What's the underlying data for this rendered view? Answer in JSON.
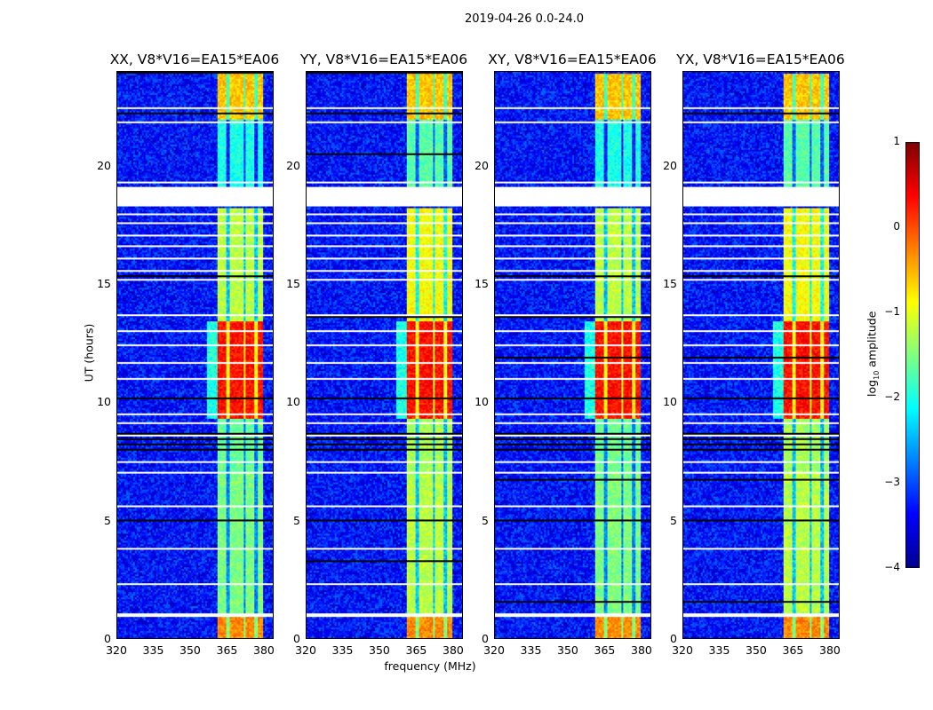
{
  "chart_data": {
    "type": "heatmap",
    "title": "2019-04-26 0.0-24.0",
    "xlabel": "frequency (MHz)",
    "ylabel": "UT (hours)",
    "xlim": [
      320,
      384
    ],
    "ylim": [
      0,
      24
    ],
    "xticks": [
      "320",
      "335",
      "350",
      "365",
      "380"
    ],
    "xtick_values": [
      320,
      335,
      350,
      365,
      380
    ],
    "yticks": [
      "0",
      "5",
      "10",
      "15",
      "20"
    ],
    "ytick_values": [
      0,
      5,
      10,
      15,
      20
    ],
    "panels": [
      {
        "title": "XX, V8*V16=EA15*EA06",
        "band_offset": 0
      },
      {
        "title": "YY, V8*V16=EA15*EA06",
        "band_offset": 0.3
      },
      {
        "title": "XY, V8*V16=EA15*EA06",
        "band_offset": 0
      },
      {
        "title": "YX, V8*V16=EA15*EA06",
        "band_offset": 0.3
      }
    ],
    "background_log_amplitude": -3.3,
    "band_freq_range_mhz": [
      360.5,
      380
    ],
    "band_time_levels": [
      {
        "hours": [
          0,
          1
        ],
        "log_amplitude": -0.3
      },
      {
        "hours": [
          1,
          7
        ],
        "log_amplitude": -1.5
      },
      {
        "hours": [
          7,
          9.3
        ],
        "log_amplitude": -1.6
      },
      {
        "hours": [
          9.3,
          13.5
        ],
        "log_amplitude": 0.3
      },
      {
        "hours": [
          13.5,
          18.3
        ],
        "log_amplitude": -1.2
      },
      {
        "hours": [
          19.2,
          22
        ],
        "log_amplitude": -2.0
      },
      {
        "hours": [
          22,
          24
        ],
        "log_amplitude": -0.6
      }
    ],
    "flagged_hours": [
      [
        0.95,
        1.1
      ],
      [
        2.3,
        2.35
      ],
      [
        2.8,
        2.85
      ],
      [
        3.3,
        3.35
      ],
      [
        3.8,
        3.85
      ],
      [
        4.3,
        4.35
      ],
      [
        5.6,
        5.65
      ],
      [
        6.4,
        6.45
      ],
      [
        7.0,
        7.05
      ],
      [
        7.5,
        7.55
      ],
      [
        8.6,
        8.65
      ],
      [
        9.1,
        9.15
      ],
      [
        9.5,
        9.55
      ],
      [
        10.3,
        10.35
      ],
      [
        11.0,
        11.05
      ],
      [
        11.7,
        11.75
      ],
      [
        12.4,
        12.45
      ],
      [
        13.0,
        13.05
      ],
      [
        13.7,
        13.75
      ],
      [
        14.4,
        14.45
      ],
      [
        14.8,
        14.85
      ],
      [
        15.2,
        15.25
      ],
      [
        15.6,
        15.65
      ],
      [
        16.1,
        16.15
      ],
      [
        16.6,
        16.65
      ],
      [
        17.1,
        17.15
      ],
      [
        17.6,
        17.65
      ],
      [
        18.0,
        18.05
      ],
      [
        18.35,
        19.15
      ],
      [
        19.3,
        19.35
      ],
      [
        21.9,
        21.95
      ],
      [
        22.5,
        22.55
      ]
    ],
    "colorbar": {
      "label": "log10 amplitude",
      "label_main": "log",
      "label_sub": "10",
      "label_rest": " amplitude",
      "range": [
        -4,
        1
      ],
      "ticks": [
        "1",
        "0",
        "−1",
        "−2",
        "−3",
        "−4"
      ],
      "tick_values": [
        1,
        0,
        -1,
        -2,
        -3,
        -4
      ],
      "colormap": "jet"
    }
  }
}
